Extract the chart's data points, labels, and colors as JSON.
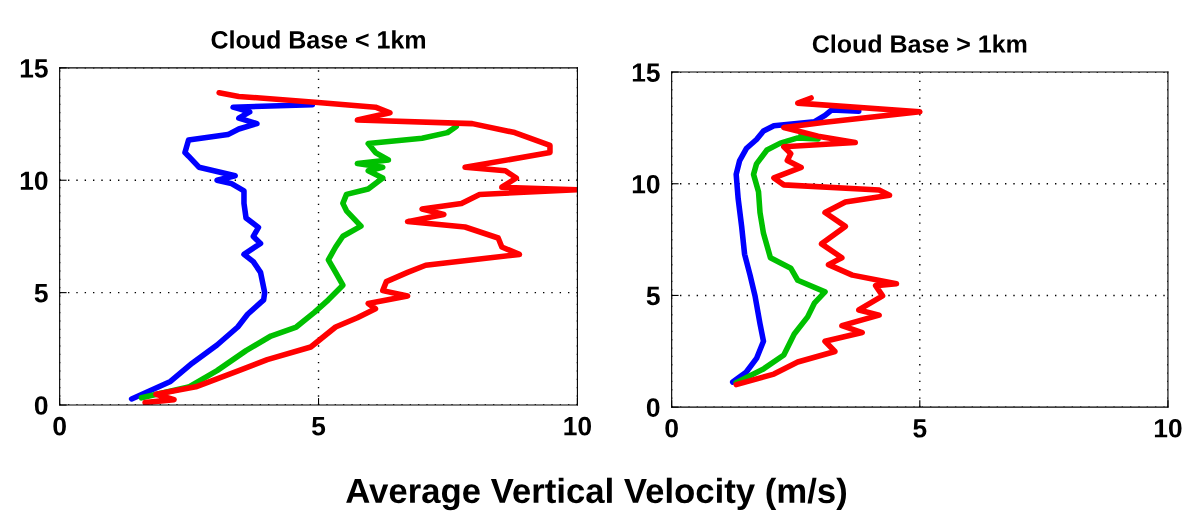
{
  "chart_data": [
    {
      "type": "line",
      "title": "Cloud Base < 1km",
      "xlabel": "Average Vertical Velocity (m/s)",
      "xlim": [
        0,
        10
      ],
      "xticks": [
        0,
        5,
        10
      ],
      "ylim": [
        0,
        15
      ],
      "yticks": [
        0,
        5,
        10,
        15
      ],
      "grid": true,
      "line_style": "solid",
      "series": [
        {
          "color": "#0000ff",
          "x": [
            1.39,
            2.14,
            2.56,
            3.04,
            3.44,
            3.63,
            3.94,
            3.96,
            3.88,
            3.74,
            3.56,
            3.88,
            3.74,
            3.84,
            3.6,
            3.56,
            3.56,
            3.32,
            3.04,
            3.39,
            2.69,
            2.49,
            2.42,
            2.49,
            3.25,
            3.46,
            3.81,
            3.46,
            3.67,
            3.35,
            4.88
          ],
          "values": [
            0.27,
            1.05,
            1.86,
            2.67,
            3.47,
            4.04,
            4.68,
            5.0,
            5.9,
            6.38,
            6.7,
            7.19,
            7.5,
            7.9,
            8.32,
            8.97,
            9.53,
            9.85,
            10.0,
            10.2,
            10.58,
            11.07,
            11.23,
            11.79,
            12.03,
            12.28,
            12.52,
            12.76,
            13.04,
            13.25,
            13.36
          ]
        },
        {
          "color": "#00c000",
          "x": [
            1.58,
            2.49,
            3.04,
            3.6,
            4.08,
            4.57,
            4.92,
            5.19,
            5.47,
            5.33,
            5.19,
            5.33,
            5.47,
            5.82,
            5.54,
            5.47,
            5.54,
            5.96,
            6.24,
            5.96,
            6.24,
            5.75,
            6.35,
            6.1,
            5.96,
            7.0,
            7.49,
            7.66
          ],
          "values": [
            0.32,
            0.8,
            1.53,
            2.42,
            3.07,
            3.47,
            4.12,
            4.68,
            5.33,
            5.9,
            6.46,
            7.03,
            7.51,
            7.96,
            8.64,
            8.97,
            9.37,
            9.61,
            10.1,
            10.42,
            10.58,
            10.74,
            10.9,
            11.23,
            11.63,
            11.87,
            12.12,
            12.39
          ]
        },
        {
          "color": "#ff0000",
          "x": [
            1.65,
            2.21,
            1.86,
            2.63,
            3.46,
            4.01,
            4.85,
            5.33,
            5.75,
            6.1,
            5.96,
            6.72,
            6.24,
            6.31,
            6.72,
            7.07,
            8.88,
            8.54,
            8.47,
            7.83,
            6.72,
            7.42,
            7.0,
            7.76,
            8.11,
            9.99,
            8.54,
            8.82,
            8.61,
            7.83,
            9.47,
            9.47,
            8.79,
            7.97,
            5.75,
            6.38,
            6.1,
            4.99,
            3.46,
            3.08
          ],
          "values": [
            0.11,
            0.24,
            0.48,
            0.81,
            1.53,
            2.02,
            2.58,
            3.47,
            3.88,
            4.28,
            4.52,
            4.85,
            5.09,
            5.49,
            5.9,
            6.22,
            6.7,
            7.03,
            7.43,
            7.92,
            8.16,
            8.48,
            8.72,
            8.97,
            9.37,
            9.58,
            9.69,
            10.1,
            10.42,
            10.58,
            11.23,
            11.55,
            12.12,
            12.52,
            12.68,
            13.0,
            13.25,
            13.46,
            13.73,
            13.89
          ]
        }
      ]
    },
    {
      "type": "line",
      "title": "Cloud Base > 1km",
      "xlim": [
        0,
        10
      ],
      "xticks": [
        0,
        5,
        10
      ],
      "ylim": [
        0,
        15
      ],
      "yticks": [
        0,
        5,
        10,
        15
      ],
      "grid": true,
      "line_style": "solid",
      "series": [
        {
          "color": "#0000ff",
          "x": [
            1.23,
            1.5,
            1.71,
            1.85,
            1.78,
            1.68,
            1.58,
            1.47,
            1.41,
            1.34,
            1.3,
            1.37,
            1.51,
            1.71,
            1.85,
            2.06,
            2.88,
            3.09,
            3.22,
            3.77
          ],
          "values": [
            1.12,
            1.56,
            2.18,
            2.95,
            3.73,
            4.98,
            5.91,
            6.84,
            8.09,
            9.33,
            10.42,
            11.04,
            11.59,
            11.98,
            12.36,
            12.6,
            12.78,
            13.06,
            13.3,
            13.25
          ]
        },
        {
          "color": "#00c000",
          "x": [
            1.3,
            1.85,
            2.26,
            2.47,
            2.74,
            2.88,
            3.09,
            2.54,
            2.4,
            1.99,
            1.85,
            1.78,
            1.75,
            1.65,
            1.71,
            1.92,
            2.19,
            2.54,
            2.95,
            2.61
          ],
          "values": [
            1.09,
            1.71,
            2.33,
            3.27,
            4.04,
            4.67,
            5.16,
            5.68,
            6.22,
            6.69,
            7.78,
            8.71,
            9.64,
            10.42,
            10.89,
            11.51,
            11.82,
            12.05,
            12.01,
            12.21
          ]
        },
        {
          "color": "#ff0000",
          "x": [
            1.3,
            2.06,
            2.54,
            3.29,
            3.09,
            3.84,
            3.43,
            4.18,
            3.77,
            4.25,
            4.11,
            4.53,
            3.64,
            3.16,
            3.43,
            3.02,
            3.5,
            3.09,
            3.5,
            4.39,
            4.18,
            2.26,
            2.06,
            2.61,
            2.33,
            2.4,
            2.26,
            3.7,
            2.95,
            2.26,
            3.09,
            5.0,
            2.54,
            2.81
          ],
          "values": [
            1.01,
            1.48,
            2.02,
            2.49,
            2.95,
            3.34,
            3.65,
            4.12,
            4.35,
            4.98,
            5.44,
            5.52,
            5.91,
            6.38,
            6.69,
            7.31,
            8.09,
            8.71,
            9.18,
            9.49,
            9.72,
            9.95,
            10.26,
            10.73,
            11.04,
            11.35,
            11.66,
            11.85,
            12.13,
            12.52,
            12.75,
            13.22,
            13.61,
            13.84
          ]
        }
      ]
    }
  ]
}
